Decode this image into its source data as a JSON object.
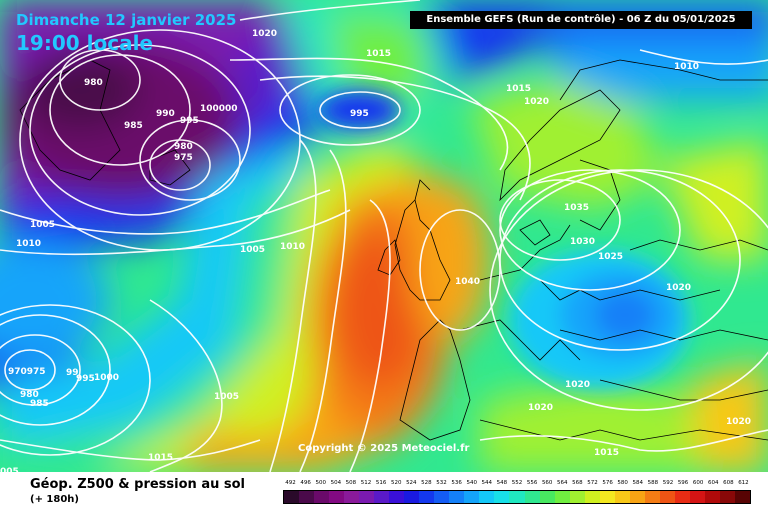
{
  "header": {
    "date": "Dimanche 12 janvier 2025",
    "time": "19:00 locale",
    "run": "Ensemble GEFS  (Run de contrôle)  -  06 Z du 05/01/2025"
  },
  "footer": {
    "title": "Géop. Z500 & pression au sol",
    "subtitle": "(+ 180h)",
    "copyright": "Copyright © 2025 Meteociel.fr"
  },
  "legend": {
    "labels": [
      "492",
      "496",
      "500",
      "504",
      "508",
      "512",
      "516",
      "520",
      "524",
      "528",
      "532",
      "536",
      "540",
      "544",
      "548",
      "552",
      "556",
      "560",
      "564",
      "568",
      "572",
      "576",
      "580",
      "584",
      "588",
      "592",
      "596",
      "600",
      "604",
      "608",
      "612"
    ],
    "colors": [
      "#2a0a2a",
      "#4a0a4a",
      "#6a0a6a",
      "#820a82",
      "#8a1a9a",
      "#7a1ab0",
      "#5a1ac8",
      "#3a10d8",
      "#1a1ae0",
      "#1438ee",
      "#145cf4",
      "#1480f8",
      "#14a4fa",
      "#14c8f8",
      "#18e0e8",
      "#20e8c0",
      "#30e890",
      "#48e860",
      "#70ee40",
      "#a0f030",
      "#d0f020",
      "#f4e820",
      "#f8c818",
      "#f8a414",
      "#f47c14",
      "#ee5414",
      "#e82c14",
      "#d41414",
      "#b00a0a",
      "#880808",
      "#580404"
    ]
  },
  "isobars": [
    {
      "text": "1020"
    },
    {
      "text": "1015"
    },
    {
      "text": "1010"
    },
    {
      "text": "1015"
    },
    {
      "text": "1020"
    },
    {
      "text": "980"
    },
    {
      "text": "985"
    },
    {
      "text": "990"
    },
    {
      "text": "995"
    },
    {
      "text": "100000"
    },
    {
      "text": "980"
    },
    {
      "text": "975"
    },
    {
      "text": "995"
    },
    {
      "text": "1005"
    },
    {
      "text": "1010"
    },
    {
      "text": "1005"
    },
    {
      "text": "1010"
    },
    {
      "text": "1035"
    },
    {
      "text": "1030"
    },
    {
      "text": "1025"
    },
    {
      "text": "1040"
    },
    {
      "text": "1020"
    },
    {
      "text": "970975"
    },
    {
      "text": "980"
    },
    {
      "text": "985"
    },
    {
      "text": "99"
    },
    {
      "text": "995"
    },
    {
      "text": "1000"
    },
    {
      "text": "1005"
    },
    {
      "text": "1020"
    },
    {
      "text": "1020"
    },
    {
      "text": "1015"
    },
    {
      "text": "1020"
    },
    {
      "text": "1015"
    },
    {
      "text": "005"
    }
  ]
}
